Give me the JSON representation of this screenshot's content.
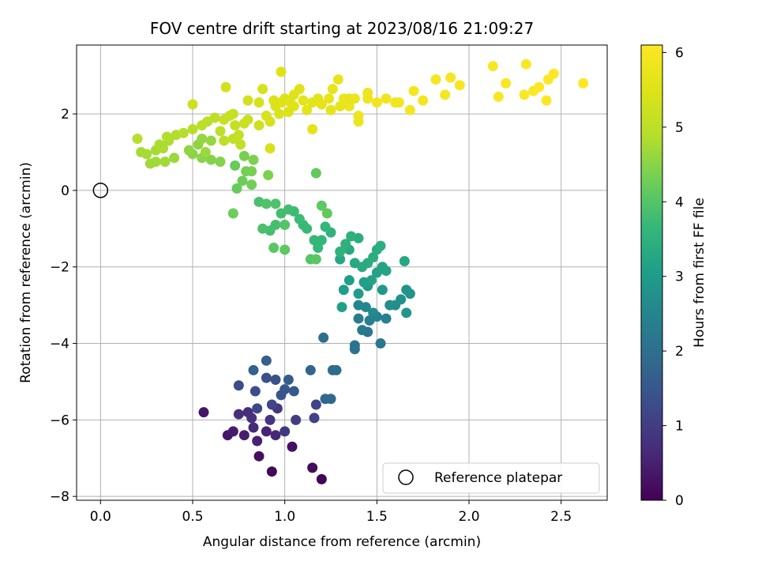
{
  "chart_data": {
    "type": "scatter",
    "title": "FOV centre drift starting at 2023/08/16 21:09:27",
    "xlabel": "Angular distance from reference (arcmin)",
    "ylabel": "Rotation from reference (arcmin)",
    "xlim": [
      -0.13,
      2.75
    ],
    "ylim": [
      -8.1,
      3.8
    ],
    "xticks": [
      0.0,
      0.5,
      1.0,
      1.5,
      2.0,
      2.5
    ],
    "xtick_labels": [
      "0.0",
      "0.5",
      "1.0",
      "1.5",
      "2.0",
      "2.5"
    ],
    "yticks": [
      -8,
      -6,
      -4,
      -2,
      0,
      2
    ],
    "ytick_labels": [
      "−8",
      "−6",
      "−4",
      "−2",
      "0",
      "2"
    ],
    "grid": true,
    "colorbar": {
      "label": "Hours from first FF file",
      "range": [
        0,
        6.1
      ],
      "ticks": [
        0,
        1,
        2,
        3,
        4,
        5,
        6
      ],
      "tick_labels": [
        "0",
        "1",
        "2",
        "3",
        "4",
        "5",
        "6"
      ],
      "colormap": "viridis"
    },
    "legend": {
      "placement": "lower right",
      "entries": [
        "Reference platepar"
      ]
    },
    "reference_point": {
      "x": 0.0,
      "y": 0.0,
      "label": "Reference platepar"
    },
    "points": [
      [
        1.2,
        -7.55,
        0.05
      ],
      [
        0.93,
        -7.35,
        0.1
      ],
      [
        1.15,
        -7.25,
        0.15
      ],
      [
        0.86,
        -6.95,
        0.2
      ],
      [
        1.04,
        -6.7,
        0.25
      ],
      [
        0.56,
        -5.8,
        0.3
      ],
      [
        0.69,
        -6.4,
        0.35
      ],
      [
        0.72,
        -6.3,
        0.4
      ],
      [
        0.78,
        -6.4,
        0.45
      ],
      [
        0.85,
        -6.55,
        0.5
      ],
      [
        0.9,
        -6.3,
        0.55
      ],
      [
        0.95,
        -6.4,
        0.6
      ],
      [
        0.83,
        -6.2,
        0.65
      ],
      [
        0.8,
        -5.8,
        0.7
      ],
      [
        0.75,
        -5.85,
        0.75
      ],
      [
        0.82,
        -5.95,
        0.8
      ],
      [
        0.92,
        -6.0,
        0.85
      ],
      [
        0.96,
        -5.7,
        0.9
      ],
      [
        1.0,
        -6.3,
        0.95
      ],
      [
        1.06,
        -6.0,
        1.0
      ],
      [
        1.16,
        -5.95,
        1.05
      ],
      [
        1.17,
        -5.6,
        1.1
      ],
      [
        0.93,
        -5.6,
        1.15
      ],
      [
        0.85,
        -5.7,
        1.2
      ],
      [
        0.75,
        -5.1,
        1.25
      ],
      [
        0.84,
        -5.25,
        1.3
      ],
      [
        0.9,
        -4.9,
        1.35
      ],
      [
        0.95,
        -4.95,
        1.4
      ],
      [
        0.98,
        -5.35,
        1.45
      ],
      [
        1.0,
        -5.2,
        1.5
      ],
      [
        1.05,
        -5.25,
        1.55
      ],
      [
        1.02,
        -4.95,
        1.6
      ],
      [
        0.9,
        -4.45,
        1.65
      ],
      [
        0.83,
        -4.7,
        1.7
      ],
      [
        1.14,
        -4.7,
        1.75
      ],
      [
        1.22,
        -5.45,
        1.8
      ],
      [
        1.25,
        -5.45,
        1.85
      ],
      [
        1.26,
        -4.7,
        1.9
      ],
      [
        1.28,
        -4.7,
        1.95
      ],
      [
        1.21,
        -3.85,
        2.0
      ],
      [
        1.38,
        -4.15,
        2.05
      ],
      [
        1.38,
        -4.05,
        2.1
      ],
      [
        1.45,
        -3.7,
        2.15
      ],
      [
        1.52,
        -4.0,
        2.2
      ],
      [
        1.42,
        -3.65,
        2.25
      ],
      [
        1.4,
        -3.35,
        2.3
      ],
      [
        1.46,
        -3.4,
        2.35
      ],
      [
        1.5,
        -3.3,
        2.4
      ],
      [
        1.55,
        -3.35,
        2.45
      ],
      [
        1.4,
        -3.0,
        2.5
      ],
      [
        1.44,
        -3.05,
        2.55
      ],
      [
        1.48,
        -3.2,
        2.6
      ],
      [
        1.57,
        -3.0,
        2.65
      ],
      [
        1.6,
        -3.0,
        2.7
      ],
      [
        1.63,
        -2.85,
        2.75
      ],
      [
        1.66,
        -2.6,
        2.8
      ],
      [
        1.68,
        -2.7,
        2.85
      ],
      [
        1.66,
        -3.2,
        2.9
      ],
      [
        1.53,
        -2.6,
        2.95
      ],
      [
        1.45,
        -2.5,
        3.0
      ],
      [
        1.4,
        -2.7,
        3.0
      ],
      [
        1.35,
        -2.35,
        3.05
      ],
      [
        1.32,
        -2.6,
        3.05
      ],
      [
        1.31,
        -3.05,
        3.1
      ],
      [
        1.43,
        -2.4,
        3.1
      ],
      [
        1.47,
        -2.35,
        3.15
      ],
      [
        1.5,
        -2.15,
        3.15
      ],
      [
        1.53,
        -2.0,
        3.2
      ],
      [
        1.55,
        -2.1,
        3.2
      ],
      [
        1.65,
        -1.85,
        3.25
      ],
      [
        1.3,
        -1.8,
        3.25
      ],
      [
        1.35,
        -1.55,
        3.3
      ],
      [
        1.38,
        -1.9,
        3.3
      ],
      [
        1.42,
        -2.0,
        3.35
      ],
      [
        1.45,
        -1.9,
        3.35
      ],
      [
        1.48,
        -1.75,
        3.4
      ],
      [
        1.5,
        -1.55,
        3.4
      ],
      [
        1.52,
        -1.45,
        3.45
      ],
      [
        1.4,
        -1.25,
        3.45
      ],
      [
        1.36,
        -1.2,
        3.5
      ],
      [
        1.33,
        -1.4,
        3.5
      ],
      [
        1.3,
        -1.6,
        3.55
      ],
      [
        1.25,
        -1.1,
        3.55
      ],
      [
        1.22,
        -0.95,
        3.6
      ],
      [
        1.2,
        -1.3,
        3.6
      ],
      [
        1.18,
        -1.5,
        3.65
      ],
      [
        1.16,
        -1.3,
        3.65
      ],
      [
        1.12,
        -1.0,
        3.7
      ],
      [
        1.1,
        -0.9,
        3.7
      ],
      [
        1.08,
        -0.75,
        3.75
      ],
      [
        1.05,
        -0.55,
        3.75
      ],
      [
        1.02,
        -0.5,
        3.8
      ],
      [
        0.98,
        -0.6,
        3.8
      ],
      [
        0.95,
        -0.9,
        3.85
      ],
      [
        0.92,
        -1.05,
        3.85
      ],
      [
        0.88,
        -1.0,
        3.9
      ],
      [
        0.86,
        -0.3,
        3.9
      ],
      [
        0.9,
        -0.35,
        3.95
      ],
      [
        0.95,
        -0.35,
        3.95
      ],
      [
        1.0,
        -0.9,
        4.0
      ],
      [
        1.14,
        -1.8,
        4.0
      ],
      [
        1.17,
        -1.8,
        4.05
      ],
      [
        0.94,
        -1.5,
        4.05
      ],
      [
        1.0,
        -1.55,
        4.1
      ],
      [
        1.2,
        -0.4,
        4.1
      ],
      [
        1.23,
        -0.6,
        4.15
      ],
      [
        1.17,
        0.45,
        4.15
      ],
      [
        0.73,
        0.65,
        4.2
      ],
      [
        0.74,
        0.05,
        4.2
      ],
      [
        0.77,
        0.25,
        4.25
      ],
      [
        0.72,
        -0.6,
        4.25
      ],
      [
        0.79,
        0.5,
        4.3
      ],
      [
        0.82,
        0.15,
        4.3
      ],
      [
        0.82,
        0.5,
        4.35
      ],
      [
        0.78,
        0.9,
        4.35
      ],
      [
        0.83,
        0.8,
        4.4
      ],
      [
        0.91,
        0.4,
        4.4
      ],
      [
        0.6,
        0.8,
        4.45
      ],
      [
        0.65,
        0.75,
        4.45
      ],
      [
        0.55,
        0.85,
        4.5
      ],
      [
        0.5,
        0.95,
        4.5
      ],
      [
        0.48,
        1.05,
        4.55
      ],
      [
        0.53,
        1.2,
        4.55
      ],
      [
        0.55,
        1.35,
        4.6
      ],
      [
        0.6,
        1.3,
        4.6
      ],
      [
        0.57,
        1.0,
        4.65
      ],
      [
        0.4,
        0.85,
        4.65
      ],
      [
        0.35,
        0.75,
        4.7
      ],
      [
        0.3,
        0.75,
        4.7
      ],
      [
        0.27,
        0.7,
        4.7
      ],
      [
        0.25,
        0.95,
        4.75
      ],
      [
        0.22,
        1.0,
        4.75
      ],
      [
        0.3,
        1.05,
        4.75
      ],
      [
        0.34,
        1.1,
        4.8
      ],
      [
        0.32,
        1.2,
        4.8
      ],
      [
        0.37,
        1.3,
        4.8
      ],
      [
        0.36,
        1.4,
        4.85
      ],
      [
        0.41,
        1.45,
        4.85
      ],
      [
        0.2,
        1.35,
        4.9
      ],
      [
        0.45,
        1.5,
        4.9
      ],
      [
        0.5,
        1.6,
        4.9
      ],
      [
        0.55,
        1.7,
        4.95
      ],
      [
        0.58,
        1.8,
        4.95
      ],
      [
        0.62,
        1.9,
        5.0
      ],
      [
        0.65,
        1.55,
        5.0
      ],
      [
        0.67,
        1.3,
        5.0
      ],
      [
        0.72,
        1.35,
        5.05
      ],
      [
        0.76,
        1.2,
        5.05
      ],
      [
        0.75,
        1.45,
        5.1
      ],
      [
        0.73,
        1.7,
        5.1
      ],
      [
        0.7,
        1.95,
        5.1
      ],
      [
        0.72,
        2.0,
        5.15
      ],
      [
        0.67,
        1.85,
        5.15
      ],
      [
        0.78,
        1.75,
        5.2
      ],
      [
        0.8,
        1.85,
        5.2
      ],
      [
        0.86,
        1.7,
        5.25
      ],
      [
        0.5,
        2.25,
        5.25
      ],
      [
        0.68,
        2.7,
        5.3
      ],
      [
        0.8,
        2.35,
        5.3
      ],
      [
        0.86,
        2.3,
        5.35
      ],
      [
        0.88,
        2.65,
        5.35
      ],
      [
        0.92,
        1.8,
        5.4
      ],
      [
        0.92,
        1.1,
        5.4
      ],
      [
        0.95,
        2.2,
        5.45
      ],
      [
        0.97,
        2.0,
        5.45
      ],
      [
        1.0,
        2.4,
        5.5
      ],
      [
        1.02,
        2.05,
        5.5
      ],
      [
        1.05,
        2.2,
        5.55
      ],
      [
        1.08,
        2.65,
        5.55
      ],
      [
        1.1,
        2.35,
        5.6
      ],
      [
        1.12,
        2.1,
        5.6
      ],
      [
        1.15,
        2.3,
        5.6
      ],
      [
        1.15,
        1.6,
        5.65
      ],
      [
        1.2,
        2.25,
        5.65
      ],
      [
        1.24,
        2.4,
        5.7
      ],
      [
        1.26,
        2.65,
        5.7
      ],
      [
        1.29,
        2.9,
        5.7
      ],
      [
        1.32,
        2.4,
        5.75
      ],
      [
        1.35,
        2.2,
        5.75
      ],
      [
        1.4,
        1.8,
        5.75
      ],
      [
        1.4,
        1.95,
        5.8
      ],
      [
        1.45,
        2.4,
        5.8
      ],
      [
        1.5,
        2.3,
        5.85
      ],
      [
        1.55,
        2.4,
        5.85
      ],
      [
        1.6,
        2.3,
        5.85
      ],
      [
        1.68,
        2.1,
        5.9
      ],
      [
        1.7,
        2.6,
        5.9
      ],
      [
        1.75,
        2.35,
        5.9
      ],
      [
        1.82,
        2.9,
        5.95
      ],
      [
        1.87,
        2.5,
        5.95
      ],
      [
        1.9,
        2.95,
        5.95
      ],
      [
        1.95,
        2.75,
        6.0
      ],
      [
        2.13,
        3.25,
        6.0
      ],
      [
        2.16,
        2.45,
        6.0
      ],
      [
        2.2,
        2.8,
        6.05
      ],
      [
        2.3,
        2.5,
        6.05
      ],
      [
        2.31,
        3.3,
        6.05
      ],
      [
        2.35,
        2.6,
        6.05
      ],
      [
        2.38,
        2.7,
        6.1
      ],
      [
        2.42,
        2.35,
        6.1
      ],
      [
        2.43,
        2.9,
        6.1
      ],
      [
        2.46,
        3.05,
        6.1
      ],
      [
        2.62,
        2.8,
        6.1
      ],
      [
        1.35,
        2.4,
        5.7
      ],
      [
        1.3,
        2.2,
        5.7
      ],
      [
        1.25,
        2.1,
        5.65
      ],
      [
        1.18,
        2.4,
        5.6
      ],
      [
        1.05,
        2.5,
        5.55
      ],
      [
        1.03,
        2.3,
        5.55
      ],
      [
        0.98,
        3.1,
        5.5
      ],
      [
        0.98,
        2.3,
        5.5
      ],
      [
        0.94,
        2.35,
        5.45
      ],
      [
        0.9,
        1.95,
        5.4
      ],
      [
        1.45,
        2.55,
        5.8
      ],
      [
        1.38,
        2.4,
        5.75
      ],
      [
        1.62,
        2.3,
        5.85
      ]
    ]
  }
}
